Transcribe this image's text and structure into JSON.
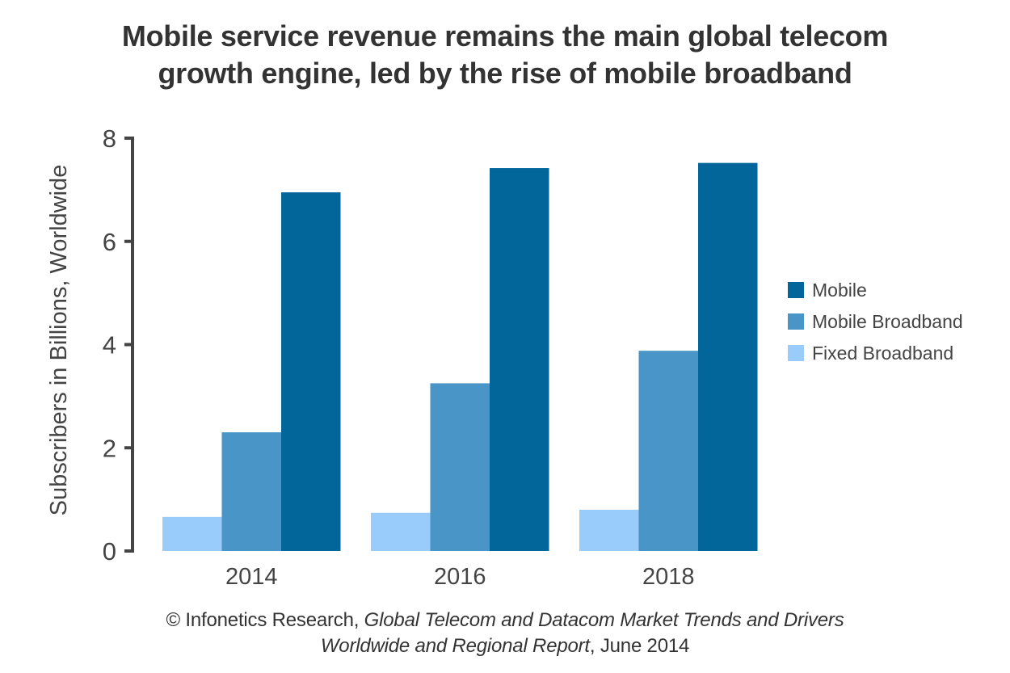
{
  "chart_data": {
    "type": "bar",
    "title": [
      "Mobile service revenue remains the main global telecom",
      "growth engine, led by the rise of mobile broadband"
    ],
    "xlabel": "",
    "ylabel": "Subscribers in Billions, Worldwide",
    "categories": [
      "2014",
      "2016",
      "2018"
    ],
    "ylim": [
      0,
      8
    ],
    "yticks": [
      0,
      2,
      4,
      6,
      8
    ],
    "grid": false,
    "legend_position": "right",
    "series": [
      {
        "name": "Fixed Broadband",
        "color": "#99ccfa",
        "values": [
          0.66,
          0.74,
          0.8
        ]
      },
      {
        "name": "Mobile Broadband",
        "color": "#4a95c7",
        "values": [
          2.3,
          3.25,
          3.88
        ]
      },
      {
        "name": "Mobile",
        "color": "#03669b",
        "values": [
          6.95,
          7.42,
          7.52
        ]
      }
    ],
    "legend_order": [
      "Mobile",
      "Mobile Broadband",
      "Fixed Broadband"
    ]
  },
  "footer": {
    "line1_plain": "© Infonetics Research, ",
    "line1_italic": "Global Telecom and Datacom Market Trends and Drivers",
    "line2_italic": "Worldwide and Regional Report",
    "line2_plain": ", June 2014"
  }
}
